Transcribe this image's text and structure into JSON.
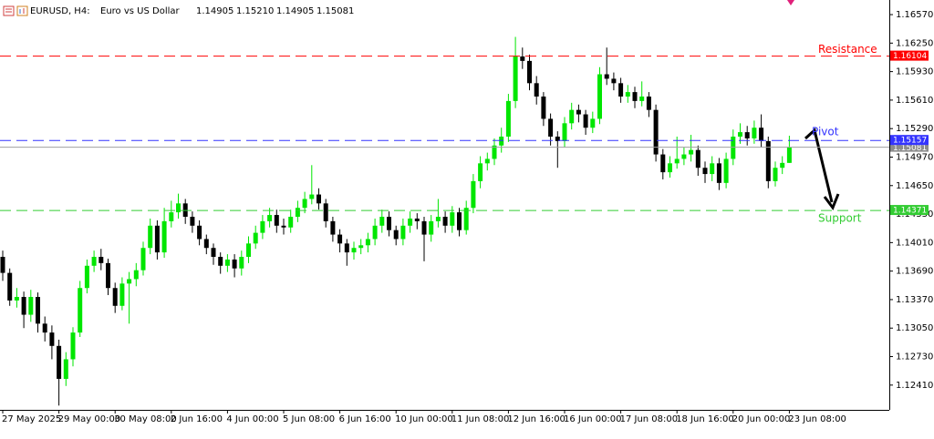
{
  "chart_data": {
    "type": "candlestick",
    "title": "EURUSD, H4:",
    "subtitle": "Euro vs US Dollar",
    "header_values": [
      "1.14905",
      "1.15210",
      "1.14905",
      "1.15081"
    ],
    "up_color": "#00e600",
    "down_color": "#000000",
    "categories": [
      "27 May 2025",
      null,
      null,
      null,
      null,
      null,
      null,
      null,
      "29 May 00:00",
      null,
      null,
      null,
      null,
      null,
      null,
      null,
      "30 May 08:00",
      null,
      null,
      null,
      null,
      null,
      null,
      null,
      "2 Jun 16:00",
      null,
      null,
      null,
      null,
      null,
      null,
      null,
      "4 Jun 00:00",
      null,
      null,
      null,
      null,
      null,
      null,
      null,
      "5 Jun 08:00",
      null,
      null,
      null,
      null,
      null,
      null,
      null,
      "6 Jun 16:00",
      null,
      null,
      null,
      null,
      null,
      null,
      null,
      "10 Jun 00:00",
      null,
      null,
      null,
      null,
      null,
      null,
      null,
      "11 Jun 08:00",
      null,
      null,
      null,
      null,
      null,
      null,
      null,
      "12 Jun 16:00",
      null,
      null,
      null,
      null,
      null,
      null,
      null,
      "16 Jun 00:00",
      null,
      null,
      null,
      null,
      null,
      null,
      null,
      "17 Jun 08:00",
      null,
      null,
      null,
      null,
      null,
      null,
      null,
      "18 Jun 16:00",
      null,
      null,
      null,
      null,
      null,
      null,
      null,
      "20 Jun 00:00",
      null,
      null,
      null,
      null,
      null,
      null,
      null,
      "23 Jun 08:00"
    ],
    "open": [
      1.1385,
      1.1367,
      1.1336,
      1.134,
      1.132,
      1.134,
      1.131,
      1.13,
      1.1285,
      1.1248,
      1.127,
      1.13,
      1.135,
      1.1375,
      1.1385,
      1.1378,
      1.135,
      1.133,
      1.1355,
      1.136,
      1.137,
      1.1395,
      1.142,
      1.139,
      1.1425,
      1.1435,
      1.1445,
      1.143,
      1.142,
      1.1405,
      1.1395,
      1.1385,
      1.1375,
      1.1382,
      1.1372,
      1.1385,
      1.14,
      1.1412,
      1.1425,
      1.1432,
      1.142,
      1.1418,
      1.143,
      1.144,
      1.145,
      1.1455,
      1.1445,
      1.1425,
      1.141,
      1.14,
      1.139,
      1.1395,
      1.1398,
      1.1405,
      1.142,
      1.143,
      1.1415,
      1.1405,
      1.142,
      1.1428,
      1.1425,
      1.141,
      1.1425,
      1.143,
      1.142,
      1.1435,
      1.1415,
      1.144,
      1.147,
      1.149,
      1.1495,
      1.151,
      1.152,
      1.156,
      1.161,
      1.1605,
      1.158,
      1.1565,
      1.154,
      1.152,
      1.1515,
      1.1535,
      1.155,
      1.1545,
      1.153,
      1.154,
      1.159,
      1.1585,
      1.158,
      1.1565,
      1.157,
      1.156,
      1.1565,
      1.155,
      1.15,
      1.148,
      1.149,
      1.1495,
      1.15,
      1.1505,
      1.1485,
      1.1478,
      1.149,
      1.1468,
      1.1495,
      1.152,
      1.1525,
      1.1518,
      1.153,
      1.1515,
      1.147,
      1.1485,
      1.14905
    ],
    "high": [
      1.1392,
      1.1372,
      1.135,
      1.1346,
      1.1348,
      1.1345,
      1.1318,
      1.1308,
      1.1292,
      1.1278,
      1.1306,
      1.1358,
      1.1382,
      1.1392,
      1.1394,
      1.1383,
      1.1356,
      1.1362,
      1.1368,
      1.1378,
      1.1402,
      1.1428,
      1.1426,
      1.144,
      1.1448,
      1.1456,
      1.145,
      1.1436,
      1.1426,
      1.141,
      1.14,
      1.139,
      1.1388,
      1.1388,
      1.1392,
      1.1408,
      1.142,
      1.1432,
      1.144,
      1.1438,
      1.1428,
      1.1438,
      1.1448,
      1.1458,
      1.1488,
      1.1462,
      1.145,
      1.143,
      1.1416,
      1.1405,
      1.1402,
      1.1405,
      1.1412,
      1.1428,
      1.1438,
      1.1436,
      1.142,
      1.1428,
      1.1436,
      1.1434,
      1.143,
      1.1432,
      1.145,
      1.1436,
      1.1442,
      1.144,
      1.1448,
      1.1478,
      1.1498,
      1.1502,
      1.1518,
      1.153,
      1.1568,
      1.1632,
      1.162,
      1.1612,
      1.1588,
      1.157,
      1.1546,
      1.1526,
      1.1542,
      1.1558,
      1.1556,
      1.155,
      1.1548,
      1.1598,
      1.162,
      1.1592,
      1.1586,
      1.1578,
      1.1576,
      1.1582,
      1.157,
      1.1556,
      1.1506,
      1.1498,
      1.152,
      1.1508,
      1.1522,
      1.151,
      1.1492,
      1.1498,
      1.1496,
      1.1502,
      1.1528,
      1.1535,
      1.1532,
      1.1538,
      1.1545,
      1.152,
      1.1492,
      1.1498,
      1.1521
    ],
    "low": [
      1.1358,
      1.133,
      1.1328,
      1.1305,
      1.1312,
      1.13,
      1.129,
      1.127,
      1.1218,
      1.124,
      1.1262,
      1.1295,
      1.1344,
      1.1368,
      1.137,
      1.1342,
      1.1322,
      1.1325,
      1.131,
      1.1352,
      1.1364,
      1.1388,
      1.1382,
      1.1384,
      1.1418,
      1.1428,
      1.1422,
      1.1412,
      1.1398,
      1.1388,
      1.1376,
      1.1366,
      1.1368,
      1.1362,
      1.1364,
      1.1378,
      1.1394,
      1.1405,
      1.1418,
      1.1412,
      1.141,
      1.1412,
      1.1424,
      1.1434,
      1.1444,
      1.1438,
      1.1418,
      1.1402,
      1.139,
      1.1375,
      1.1382,
      1.1388,
      1.139,
      1.1398,
      1.1412,
      1.1408,
      1.1398,
      1.1398,
      1.1412,
      1.1416,
      1.138,
      1.1402,
      1.1418,
      1.1412,
      1.1412,
      1.1408,
      1.141,
      1.1434,
      1.1462,
      1.1482,
      1.1488,
      1.1502,
      1.1514,
      1.1552,
      1.1596,
      1.1572,
      1.1556,
      1.1532,
      1.151,
      1.1485,
      1.1508,
      1.1528,
      1.1536,
      1.1522,
      1.1524,
      1.1534,
      1.1578,
      1.1572,
      1.1558,
      1.1558,
      1.1552,
      1.1554,
      1.1542,
      1.1492,
      1.1472,
      1.1474,
      1.1484,
      1.1488,
      1.1492,
      1.1476,
      1.1468,
      1.147,
      1.146,
      1.1462,
      1.1488,
      1.1512,
      1.151,
      1.1512,
      1.1508,
      1.1462,
      1.1464,
      1.1478,
      1.14905
    ],
    "close": [
      1.1367,
      1.1336,
      1.134,
      1.132,
      1.134,
      1.131,
      1.13,
      1.1285,
      1.1248,
      1.127,
      1.13,
      1.135,
      1.1375,
      1.1385,
      1.1378,
      1.135,
      1.133,
      1.1355,
      1.136,
      1.137,
      1.1395,
      1.142,
      1.139,
      1.1425,
      1.1435,
      1.1445,
      1.143,
      1.142,
      1.1405,
      1.1395,
      1.1385,
      1.1375,
      1.1382,
      1.1372,
      1.1385,
      1.14,
      1.1412,
      1.1425,
      1.1432,
      1.142,
      1.1418,
      1.143,
      1.144,
      1.145,
      1.1455,
      1.1445,
      1.1425,
      1.141,
      1.14,
      1.139,
      1.1395,
      1.1398,
      1.1405,
      1.142,
      1.143,
      1.1415,
      1.1405,
      1.142,
      1.1428,
      1.1425,
      1.141,
      1.1425,
      1.143,
      1.142,
      1.1435,
      1.1415,
      1.144,
      1.147,
      1.149,
      1.1495,
      1.151,
      1.152,
      1.156,
      1.161,
      1.1605,
      1.158,
      1.1565,
      1.154,
      1.152,
      1.1515,
      1.1535,
      1.155,
      1.1545,
      1.153,
      1.154,
      1.159,
      1.1585,
      1.158,
      1.1565,
      1.157,
      1.156,
      1.1565,
      1.155,
      1.15,
      1.148,
      1.149,
      1.1495,
      1.15,
      1.1505,
      1.1485,
      1.1478,
      1.149,
      1.1468,
      1.1495,
      1.152,
      1.1525,
      1.1518,
      1.153,
      1.1515,
      1.147,
      1.1485,
      1.14905,
      1.15081
    ],
    "ylim": [
      1.12132,
      1.16734
    ],
    "yticks": [
      {
        "value": 1.1657,
        "label": "1.16570"
      },
      {
        "value": 1.1625,
        "label": "1.16250"
      },
      {
        "value": 1.1593,
        "label": "1.15930"
      },
      {
        "value": 1.1561,
        "label": "1.15610"
      },
      {
        "value": 1.1529,
        "label": "1.15290"
      },
      {
        "value": 1.1497,
        "label": "1.14970"
      },
      {
        "value": 1.1465,
        "label": "1.14650"
      },
      {
        "value": 1.1433,
        "label": "1.14330"
      },
      {
        "value": 1.1401,
        "label": "1.14010"
      },
      {
        "value": 1.1369,
        "label": "1.13690"
      },
      {
        "value": 1.1337,
        "label": "1.13370"
      },
      {
        "value": 1.1305,
        "label": "1.13050"
      },
      {
        "value": 1.1273,
        "label": "1.12730"
      },
      {
        "value": 1.1241,
        "label": "1.12410"
      }
    ],
    "levels": [
      {
        "name": "Resistance",
        "value": 1.16104,
        "color": "#ff0000"
      },
      {
        "name": "Pivot",
        "value": 1.15157,
        "color": "#3333ff"
      },
      {
        "name": "Support",
        "value": 1.14371,
        "color": "#33cc33"
      }
    ]
  }
}
